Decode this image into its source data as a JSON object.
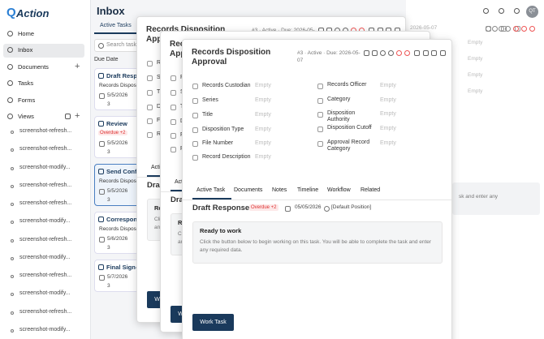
{
  "sidebar": {
    "logo_mark": "Q",
    "logo_text": "Action",
    "nav": [
      "Home",
      "Inbox",
      "Documents",
      "Tasks",
      "Forms",
      "Views"
    ],
    "views": [
      "screenshot-refresh...",
      "screenshot-refresh...",
      "screenshot-modify...",
      "screenshot-refresh...",
      "screenshot-refresh...",
      "screenshot-modify...",
      "screenshot-refresh...",
      "screenshot-modify...",
      "screenshot-refresh...",
      "screenshot-modify...",
      "screenshot-refresh...",
      "screenshot-modify..."
    ]
  },
  "header": {
    "title": "Inbox",
    "avatar": "QT"
  },
  "inbox": {
    "tab": "Active Tasks",
    "search_placeholder": "Search tasks",
    "sort_label": "Due Date",
    "cards": [
      {
        "title": "Draft Resp",
        "subtitle": "Records Dispos",
        "date": "5/5/2026",
        "count": 3
      },
      {
        "title": "Review",
        "badge": "Overdue +2",
        "date": "5/5/2026",
        "count": 3
      },
      {
        "title": "Send Conf",
        "subtitle": "Records Dispos",
        "date": "5/5/2026",
        "count": 3
      },
      {
        "title": "Correspon",
        "subtitle": "Records Dispos",
        "date": "5/6/2026",
        "count": 3
      },
      {
        "title": "Final Sign-",
        "date": "5/7/2026",
        "count": 3
      }
    ]
  },
  "dialog": {
    "title": "Records Disposition Approval",
    "meta": "#3 · Active · Due: 2026-05-07",
    "fields_left": [
      {
        "label": "Records Custodian",
        "value": "Empty"
      },
      {
        "label": "Series",
        "value": "Empty"
      },
      {
        "label": "Title",
        "value": "Empty"
      },
      {
        "label": "Disposition Type",
        "value": "Empty"
      },
      {
        "label": "File Number",
        "value": "Empty"
      },
      {
        "label": "Record Description",
        "value": "Empty"
      }
    ],
    "fields_right": [
      {
        "label": "Records Officer",
        "value": "Empty"
      },
      {
        "label": "Category",
        "value": "Empty"
      },
      {
        "label": "Disposition Authority",
        "value": "Empty"
      },
      {
        "label": "Disposition Cutoff",
        "value": "Empty"
      },
      {
        "label": "Approval Record Category",
        "value": "Empty"
      }
    ],
    "tabs": [
      "Active Task",
      "Documents",
      "Notes",
      "Timeline",
      "Workflow",
      "Related"
    ],
    "task": {
      "title": "Draft Response",
      "badge": "Overdue +2",
      "date": "05/05/2026",
      "position": "[Default Position]"
    },
    "notice": {
      "heading": "Ready to work",
      "text": "Click the button below to begin working on this task. You will be able to complete the task and enter any required data."
    },
    "button": "Work Task"
  },
  "background": {
    "date": "2026-05-07",
    "values": [
      "Empty",
      "Empty",
      "Empty",
      "Empty"
    ],
    "fragment": "sk and enter any"
  }
}
